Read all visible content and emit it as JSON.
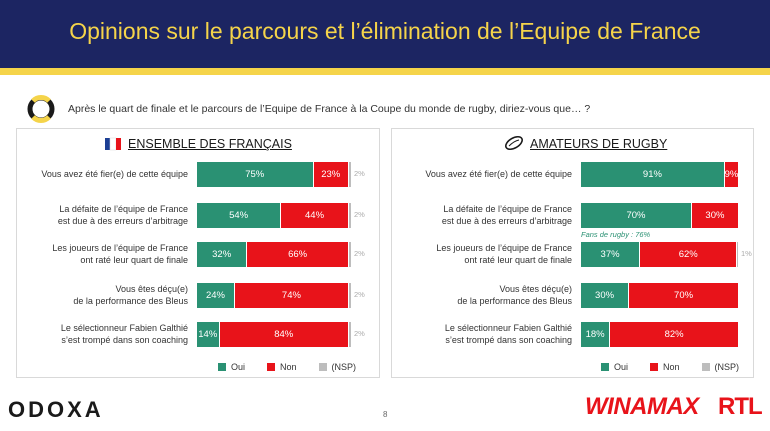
{
  "title": "Opinions sur le parcours et l’élimination de l’Equipe de France",
  "question": "Après le quart de finale et le parcours de l’Equipe de France à la Coupe du monde de rugby, diriez-vous que… ?",
  "colors": {
    "header_bg": "#1c2562",
    "accent": "#f5d44a",
    "oui": "#2a9173",
    "non": "#e8131a",
    "nsp": "#bdbdbd"
  },
  "icons": {
    "question_logo": "odoxa-q-icon",
    "france_flag": "france-flag-icon",
    "rugby_ball": "rugby-ball-icon"
  },
  "legend": {
    "oui": "Oui",
    "non": "Non",
    "nsp": "(NSP)"
  },
  "footer": {
    "brand": "ODOXA",
    "page": "8",
    "sponsor1": "WINAMAX",
    "sponsor2": "RTL"
  },
  "chart_data": [
    {
      "type": "bar",
      "title": "ENSEMBLE DES FRANÇAIS",
      "categories": [
        [
          "Vous avez été fier(e) de cette équipe"
        ],
        [
          "La défaite de l’équipe de France",
          "est due à des erreurs d’arbitrage"
        ],
        [
          "Les joueurs de l’équipe de France",
          "ont raté leur quart de finale"
        ],
        [
          "Vous êtes déçu(e)",
          "de la performance des Bleus"
        ],
        [
          "Le sélectionneur Fabien Galthié",
          "s’est trompé dans son coaching"
        ]
      ],
      "series": [
        {
          "name": "Oui",
          "values": [
            75,
            54,
            32,
            24,
            14
          ]
        },
        {
          "name": "Non",
          "values": [
            23,
            44,
            66,
            74,
            84
          ]
        },
        {
          "name": "(NSP)",
          "values": [
            2,
            2,
            2,
            2,
            2
          ]
        }
      ],
      "value_labels": {
        "oui": [
          "75%",
          "54%",
          "32%",
          "24%",
          "14%"
        ],
        "non": [
          "23%",
          "44%",
          "66%",
          "74%",
          "84%"
        ],
        "nsp": [
          "2%",
          "2%",
          "2%",
          "2%",
          "2%"
        ]
      },
      "stacked": true,
      "xlim": [
        0,
        100
      ]
    },
    {
      "type": "bar",
      "title": "AMATEURS DE RUGBY",
      "categories": [
        [
          "Vous avez été fier(e) de cette équipe"
        ],
        [
          "La défaite de l’équipe de France",
          "est due à des erreurs d’arbitrage"
        ],
        [
          "Les joueurs de l’équipe de France",
          "ont raté leur quart de finale"
        ],
        [
          "Vous êtes déçu(e)",
          "de la performance des Bleus"
        ],
        [
          "Le sélectionneur Fabien Galthié",
          "s’est trompé dans son coaching"
        ]
      ],
      "series": [
        {
          "name": "Oui",
          "values": [
            91,
            70,
            37,
            30,
            18
          ]
        },
        {
          "name": "Non",
          "values": [
            9,
            30,
            62,
            70,
            82
          ]
        },
        {
          "name": "(NSP)",
          "values": [
            0,
            0,
            1,
            0,
            0
          ]
        }
      ],
      "value_labels": {
        "oui": [
          "91%",
          "70%",
          "37%",
          "30%",
          "18%"
        ],
        "non": [
          "9%",
          "30%",
          "62%",
          "70%",
          "82%"
        ],
        "nsp": [
          "",
          "",
          "1%",
          "",
          ""
        ]
      },
      "stacked": true,
      "xlim": [
        0,
        100
      ],
      "annotations": [
        {
          "row": 1,
          "text": "Fans de rugby : 76%"
        }
      ]
    }
  ]
}
